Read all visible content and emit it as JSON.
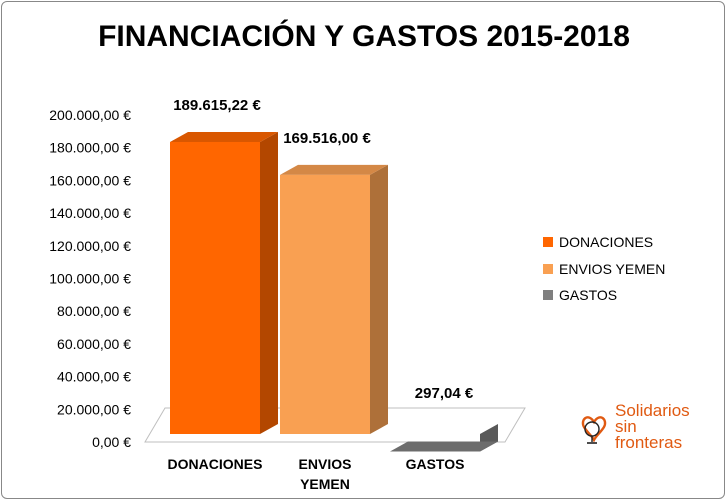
{
  "chart_data": {
    "type": "bar",
    "title": "FINANCIACIÓN Y GASTOS 2015-2018",
    "categories": [
      "DONACIONES",
      "ENVIOS YEMEN",
      "GASTOS"
    ],
    "values": [
      189615.22,
      169516.0,
      297.04
    ],
    "data_labels": [
      "189.615,22 €",
      "169.516,00 €",
      "297,04 €"
    ],
    "colors": [
      "#ff6600",
      "#f9a052",
      "#7f7f7f"
    ],
    "ylim": [
      0,
      200000
    ],
    "y_ticks": [
      "0,00 €",
      "20.000,00 €",
      "40.000,00 €",
      "60.000,00 €",
      "80.000,00 €",
      "100.000,00 €",
      "120.000,00 €",
      "140.000,00 €",
      "160.000,00 €",
      "180.000,00 €",
      "200.000,00 €"
    ],
    "legend": {
      "position": "right",
      "entries": [
        "DONACIONES",
        "ENVIOS YEMEN",
        "GASTOS"
      ]
    },
    "grid": false,
    "style": "3d-column"
  },
  "logo": {
    "line1": "Solidarios",
    "line2": "sin",
    "line3": "fronteras",
    "color": "#e05a12"
  }
}
